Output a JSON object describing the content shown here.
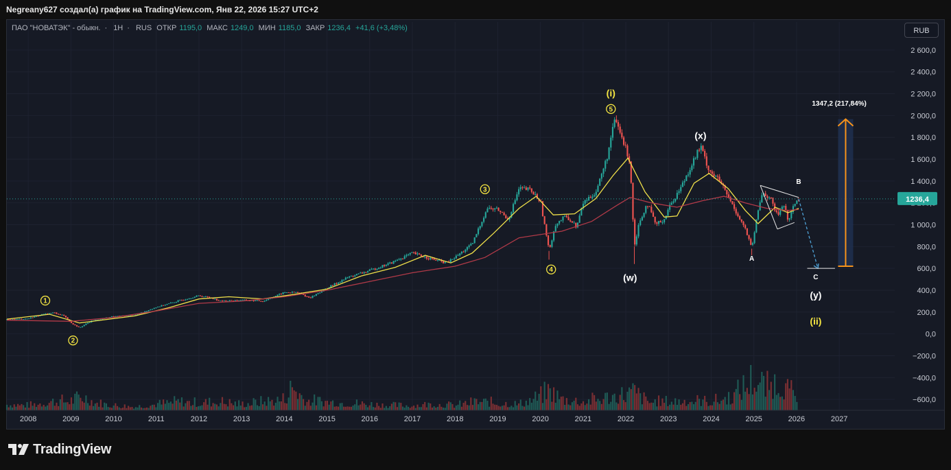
{
  "header": {
    "title": "Negreany627 создал(а) график на TradingView.com, Янв 22, 2026 15:27 UTC+2"
  },
  "legend": {
    "symbol": "ПАО \"НОВАТЭК\" - обыкн.",
    "interval": "1Н",
    "exchange": "RUS",
    "open_label": "ОТКР",
    "open_value": "1195,0",
    "high_label": "МАКС",
    "high_value": "1249,0",
    "low_label": "МИН",
    "low_value": "1185,0",
    "close_label": "ЗАКР",
    "close_value": "1236,4",
    "change_value": "+41,6 (+3,48%)"
  },
  "currency_button": "RUB",
  "price_label": "1236,4",
  "measure_label": "1347,2 (217,84%)",
  "brand": "TradingView",
  "colors": {
    "background": "#161a25",
    "up": "#26a69a",
    "down": "#ef5350",
    "ma_fast": "#f0e04a",
    "ma_slow": "#b23a48",
    "wave_label": "#f5e642",
    "measure": "#f7931a",
    "measure_fill": "#1e3050",
    "projection": "#4fa3d8"
  },
  "chart_data": {
    "type": "candlestick",
    "title": "",
    "xlabel": "",
    "ylabel": "",
    "ylim": [
      -700,
      2700
    ],
    "y_ticks": [
      "2 600,0",
      "2 400,0",
      "2 200,0",
      "2 000,0",
      "1 800,0",
      "1 600,0",
      "1 400,0",
      "1 200,0",
      "1 000,0",
      "800,0",
      "600,0",
      "400,0",
      "200,0",
      "0,0",
      "−200,0",
      "−400,0",
      "−600,0"
    ],
    "y_tick_values": [
      2600,
      2400,
      2200,
      2000,
      1800,
      1600,
      1400,
      1200,
      1000,
      800,
      600,
      400,
      200,
      0,
      -200,
      -400,
      -600
    ],
    "x_ticks": [
      "2008",
      "2009",
      "2010",
      "2011",
      "2012",
      "2013",
      "2014",
      "2015",
      "2016",
      "2017",
      "2018",
      "2019",
      "2020",
      "2021",
      "2022",
      "2023",
      "2024",
      "2025",
      "2026",
      "2027"
    ],
    "x_tick_values": [
      2008,
      2009,
      2010,
      2011,
      2012,
      2013,
      2014,
      2015,
      2016,
      2017,
      2018,
      2019,
      2020,
      2021,
      2022,
      2023,
      2024,
      2025,
      2026,
      2027
    ],
    "xlim": [
      2007.5,
      2028.3
    ],
    "last_price": 1236.4,
    "price_path": [
      [
        2007.5,
        130
      ],
      [
        2008.0,
        140
      ],
      [
        2008.3,
        175
      ],
      [
        2008.6,
        195
      ],
      [
        2008.85,
        165
      ],
      [
        2009.0,
        100
      ],
      [
        2009.2,
        60
      ],
      [
        2009.5,
        120
      ],
      [
        2010.0,
        160
      ],
      [
        2010.5,
        170
      ],
      [
        2011.0,
        245
      ],
      [
        2011.5,
        300
      ],
      [
        2012.0,
        350
      ],
      [
        2012.3,
        330
      ],
      [
        2012.5,
        300
      ],
      [
        2013.0,
        310
      ],
      [
        2013.5,
        300
      ],
      [
        2014.0,
        380
      ],
      [
        2014.3,
        380
      ],
      [
        2014.6,
        330
      ],
      [
        2015.0,
        420
      ],
      [
        2015.5,
        520
      ],
      [
        2016.0,
        580
      ],
      [
        2016.5,
        650
      ],
      [
        2017.0,
        740
      ],
      [
        2017.5,
        680
      ],
      [
        2017.8,
        650
      ],
      [
        2018.0,
        700
      ],
      [
        2018.4,
        820
      ],
      [
        2018.75,
        1150
      ],
      [
        2019.0,
        1140
      ],
      [
        2019.25,
        1050
      ],
      [
        2019.5,
        1330
      ],
      [
        2019.75,
        1320
      ],
      [
        2020.0,
        1220
      ],
      [
        2020.2,
        760
      ],
      [
        2020.35,
        1000
      ],
      [
        2020.6,
        1080
      ],
      [
        2020.85,
        980
      ],
      [
        2021.0,
        1200
      ],
      [
        2021.3,
        1300
      ],
      [
        2021.55,
        1600
      ],
      [
        2021.75,
        1970
      ],
      [
        2021.95,
        1750
      ],
      [
        2022.1,
        1580
      ],
      [
        2022.2,
        800
      ],
      [
        2022.3,
        1000
      ],
      [
        2022.5,
        1200
      ],
      [
        2022.7,
        1000
      ],
      [
        2022.9,
        1050
      ],
      [
        2023.0,
        1150
      ],
      [
        2023.3,
        1350
      ],
      [
        2023.6,
        1600
      ],
      [
        2023.75,
        1720
      ],
      [
        2023.95,
        1500
      ],
      [
        2024.2,
        1400
      ],
      [
        2024.5,
        1180
      ],
      [
        2024.8,
        960
      ],
      [
        2024.95,
        780
      ],
      [
        2025.1,
        1130
      ],
      [
        2025.2,
        1300
      ],
      [
        2025.4,
        1230
      ],
      [
        2025.55,
        1080
      ],
      [
        2025.7,
        1200
      ],
      [
        2025.8,
        1030
      ],
      [
        2025.95,
        1195
      ],
      [
        2026.05,
        1236.4
      ]
    ],
    "series": [
      {
        "name": "",
        "kind": "moving-average-fast",
        "points": [
          [
            2007.5,
            135
          ],
          [
            2008.5,
            180
          ],
          [
            2009.2,
            100
          ],
          [
            2009.6,
            120
          ],
          [
            2010.5,
            165
          ],
          [
            2011.3,
            240
          ],
          [
            2012.0,
            320
          ],
          [
            2012.7,
            340
          ],
          [
            2013.5,
            320
          ],
          [
            2014.2,
            360
          ],
          [
            2015.0,
            410
          ],
          [
            2015.8,
            530
          ],
          [
            2016.6,
            610
          ],
          [
            2017.3,
            720
          ],
          [
            2017.9,
            650
          ],
          [
            2018.4,
            740
          ],
          [
            2018.9,
            920
          ],
          [
            2019.5,
            1150
          ],
          [
            2019.9,
            1260
          ],
          [
            2020.3,
            1090
          ],
          [
            2020.8,
            1100
          ],
          [
            2021.3,
            1240
          ],
          [
            2021.7,
            1450
          ],
          [
            2022.05,
            1610
          ],
          [
            2022.45,
            1300
          ],
          [
            2022.9,
            1070
          ],
          [
            2023.2,
            1080
          ],
          [
            2023.6,
            1380
          ],
          [
            2023.95,
            1470
          ],
          [
            2024.4,
            1330
          ],
          [
            2024.8,
            1130
          ],
          [
            2025.1,
            1010
          ],
          [
            2025.5,
            1160
          ],
          [
            2025.8,
            1110
          ],
          [
            2026.05,
            1150
          ]
        ]
      },
      {
        "name": "",
        "kind": "moving-average-slow",
        "points": [
          [
            2007.5,
            125
          ],
          [
            2009.0,
            115
          ],
          [
            2010.0,
            150
          ],
          [
            2011.0,
            210
          ],
          [
            2012.0,
            280
          ],
          [
            2013.0,
            300
          ],
          [
            2014.0,
            340
          ],
          [
            2015.0,
            400
          ],
          [
            2016.0,
            480
          ],
          [
            2017.0,
            560
          ],
          [
            2018.0,
            620
          ],
          [
            2018.7,
            700
          ],
          [
            2019.5,
            880
          ],
          [
            2020.5,
            940
          ],
          [
            2021.2,
            1030
          ],
          [
            2021.8,
            1180
          ],
          [
            2022.1,
            1250
          ],
          [
            2022.6,
            1200
          ],
          [
            2023.2,
            1160
          ],
          [
            2023.8,
            1220
          ],
          [
            2024.3,
            1260
          ],
          [
            2024.8,
            1200
          ],
          [
            2025.3,
            1150
          ],
          [
            2025.8,
            1130
          ],
          [
            2026.05,
            1140
          ]
        ]
      }
    ],
    "volume_profile": [
      [
        2007.5,
        -600
      ],
      [
        2008.0,
        -620
      ],
      [
        2008.5,
        -560
      ],
      [
        2009.0,
        -540
      ],
      [
        2009.3,
        -480
      ],
      [
        2009.6,
        -580
      ],
      [
        2010.0,
        -620
      ],
      [
        2010.5,
        -640
      ],
      [
        2011.0,
        -600
      ],
      [
        2011.5,
        -560
      ],
      [
        2012.0,
        -580
      ],
      [
        2012.5,
        -560
      ],
      [
        2013.0,
        -600
      ],
      [
        2013.5,
        -560
      ],
      [
        2014.0,
        -520
      ],
      [
        2014.2,
        -300
      ],
      [
        2014.5,
        -540
      ],
      [
        2015.0,
        -560
      ],
      [
        2015.5,
        -580
      ],
      [
        2016.0,
        -600
      ],
      [
        2016.5,
        -620
      ],
      [
        2017.0,
        -620
      ],
      [
        2017.5,
        -600
      ],
      [
        2018.0,
        -620
      ],
      [
        2018.5,
        -560
      ],
      [
        2019.0,
        -580
      ],
      [
        2019.5,
        -600
      ],
      [
        2020.0,
        -480
      ],
      [
        2020.2,
        -380
      ],
      [
        2020.5,
        -520
      ],
      [
        2021.0,
        -560
      ],
      [
        2021.5,
        -500
      ],
      [
        2022.0,
        -440
      ],
      [
        2022.2,
        -400
      ],
      [
        2022.5,
        -560
      ],
      [
        2023.0,
        -560
      ],
      [
        2023.5,
        -540
      ],
      [
        2024.0,
        -560
      ],
      [
        2024.5,
        -480
      ],
      [
        2024.8,
        -300
      ],
      [
        2025.0,
        -180
      ],
      [
        2025.3,
        -340
      ],
      [
        2025.6,
        -220
      ],
      [
        2025.8,
        -380
      ],
      [
        2026.05,
        -500
      ]
    ],
    "annotations": [
      {
        "text": "1",
        "kind": "circled-yellow",
        "x": 2008.4,
        "y": 305
      },
      {
        "text": "2",
        "kind": "circled-yellow",
        "x": 2009.05,
        "y": -60
      },
      {
        "text": "3",
        "kind": "circled-yellow",
        "x": 2018.7,
        "y": 1325
      },
      {
        "text": "4",
        "kind": "circled-yellow",
        "x": 2020.25,
        "y": 590
      },
      {
        "text": "5",
        "kind": "circled-yellow",
        "x": 2021.65,
        "y": 2060
      },
      {
        "text": "(i)",
        "kind": "yellow",
        "x": 2021.65,
        "y": 2200
      },
      {
        "text": "(x)",
        "kind": "white",
        "x": 2023.75,
        "y": 1810
      },
      {
        "text": "(w)",
        "kind": "white",
        "x": 2022.1,
        "y": 510
      },
      {
        "text": "A",
        "kind": "white-small",
        "x": 2024.95,
        "y": 695
      },
      {
        "text": "B",
        "kind": "white-small",
        "x": 2026.05,
        "y": 1400
      },
      {
        "text": "C",
        "kind": "white-small",
        "x": 2026.45,
        "y": 525
      },
      {
        "text": "(y)",
        "kind": "white",
        "x": 2026.45,
        "y": 350
      },
      {
        "text": "(ii)",
        "kind": "yellow",
        "x": 2026.45,
        "y": 110
      }
    ],
    "triangle": [
      [
        2025.15,
        1360
      ],
      [
        2026.05,
        1250
      ],
      [
        2025.55,
        960
      ],
      [
        2025.95,
        1020
      ]
    ],
    "projection": {
      "from": [
        2026.05,
        1236.4
      ],
      "to": [
        2026.5,
        600
      ]
    },
    "support_line": {
      "from": [
        2026.25,
        600
      ],
      "to": [
        2026.9,
        600
      ]
    },
    "measure": {
      "x": 2027.15,
      "from": 620,
      "to": 1967,
      "label_x": 2027.0
    }
  }
}
